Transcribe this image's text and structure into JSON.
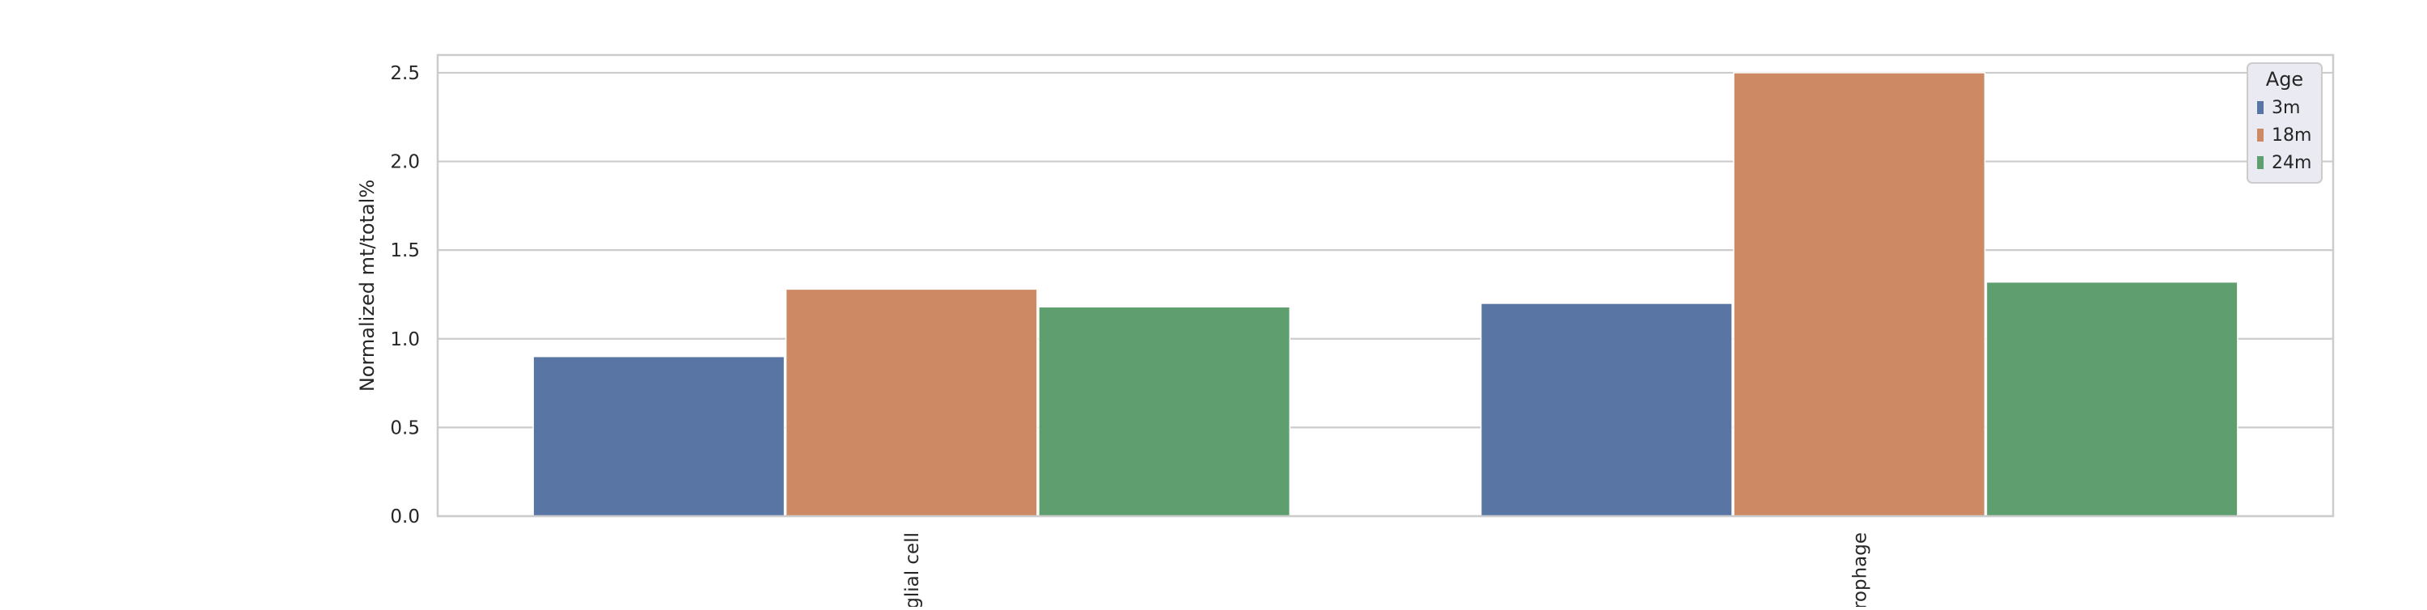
{
  "chart_data": {
    "type": "bar",
    "title": "",
    "xlabel": "",
    "ylabel": "Normalized mt/total%",
    "categories": [
      "glial cell",
      "rophage"
    ],
    "ylim": [
      0,
      2.6
    ],
    "yticks": [
      "0.0",
      "0.5",
      "1.0",
      "1.5",
      "2.0",
      "2.5"
    ],
    "grid": true,
    "legend": {
      "title": "Age",
      "placement": "top-right"
    },
    "series": [
      {
        "name": "3m",
        "color": "#5875a4",
        "values": [
          0.9,
          1.2
        ]
      },
      {
        "name": "18m",
        "color": "#cc8963",
        "values": [
          1.28,
          2.5
        ]
      },
      {
        "name": "24m",
        "color": "#5f9e6e",
        "values": [
          1.18,
          1.32
        ]
      }
    ]
  }
}
